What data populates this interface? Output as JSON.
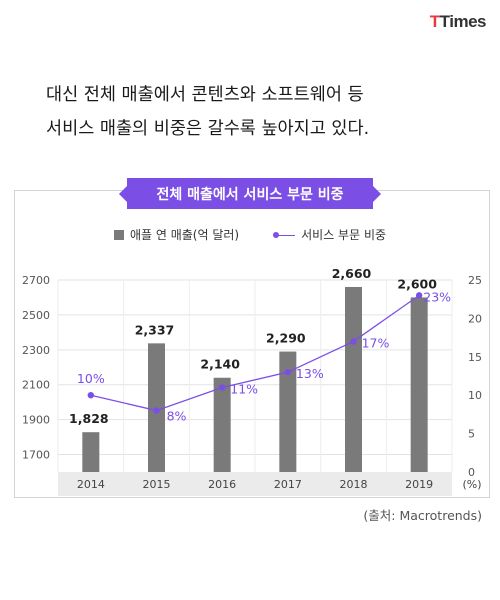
{
  "logo": {
    "part1": "T",
    "part2": "Times"
  },
  "headline": {
    "line1": "대신 전체 매출에서 콘텐츠와 소프트웨어 등",
    "line2": "서비스 매출의 비중은 갈수록 높아지고 있다."
  },
  "source": "(출처: Macrotrends)",
  "colors": {
    "bar": "#7a7a7a",
    "line": "#7b4ee6",
    "accent": "#7b4ee6"
  },
  "chart_data": {
    "type": "bar",
    "title": "전체 매출에서 서비스 부문 비중",
    "categories": [
      "2014",
      "2015",
      "2016",
      "2017",
      "2018",
      "2019"
    ],
    "series": [
      {
        "name": "애플 연 매출(억 달러)",
        "type": "bar",
        "axis": "left",
        "values": [
          1828,
          2337,
          2140,
          2290,
          2660,
          2600
        ],
        "labels": [
          "1,828",
          "2,337",
          "2,140",
          "2,290",
          "2,660",
          "2,600"
        ]
      },
      {
        "name": "서비스 부문 비중",
        "type": "line",
        "axis": "right",
        "values": [
          10,
          8,
          11,
          13,
          17,
          23
        ],
        "labels": [
          "10%",
          "8%",
          "11%",
          "13%",
          "17%",
          "23%"
        ]
      }
    ],
    "ylim_left": [
      1600,
      2700
    ],
    "yticks_left": [
      "2700",
      "2500",
      "2300",
      "2100",
      "1900",
      "1700"
    ],
    "ylim_right": [
      0,
      25
    ],
    "yticks_right": [
      "25",
      "20",
      "15",
      "10",
      "5",
      "0"
    ],
    "right_unit": "(%)",
    "grid": true,
    "legend_position": "top-center"
  }
}
